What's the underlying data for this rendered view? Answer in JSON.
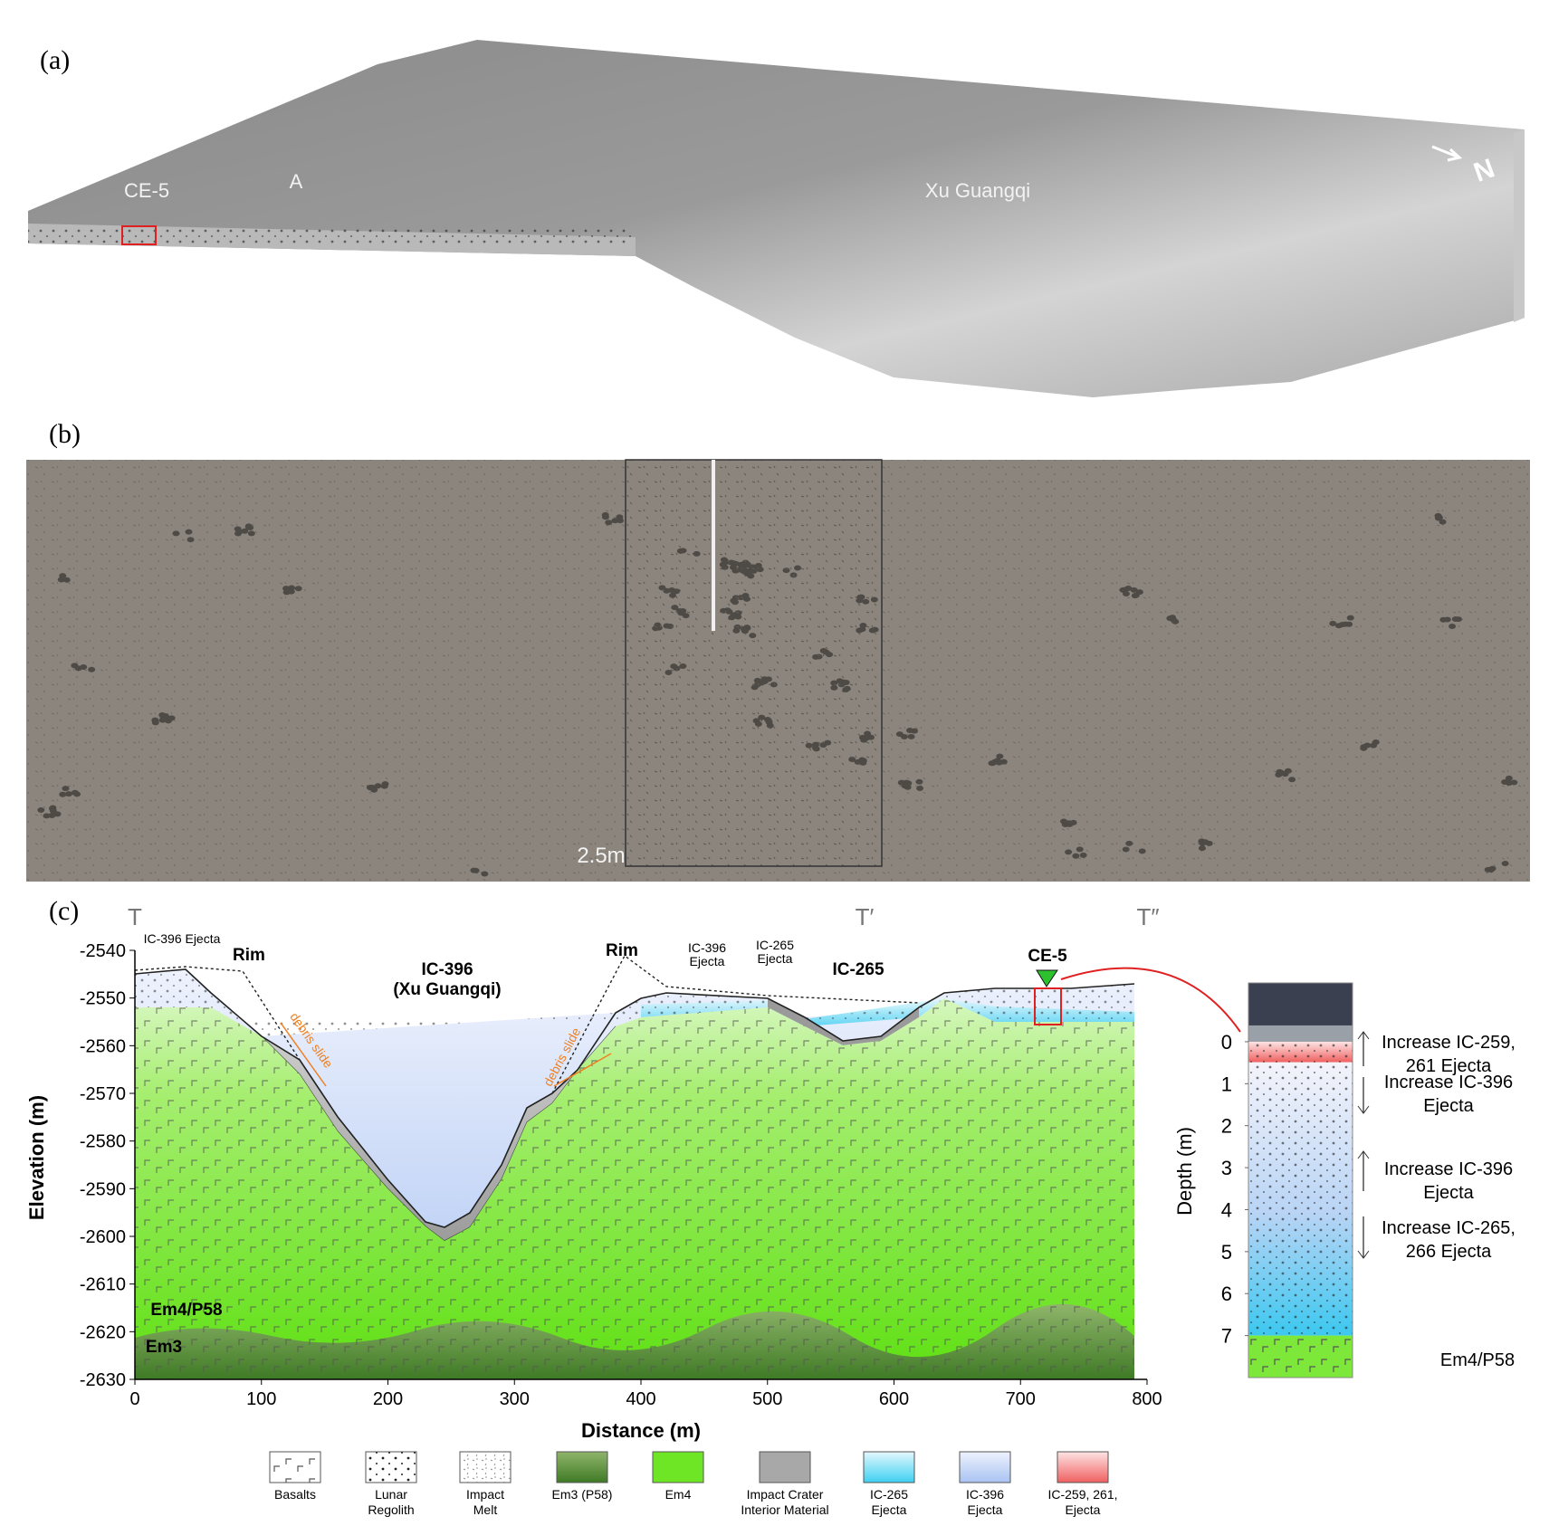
{
  "panels": {
    "a": {
      "label": "(a)",
      "annotations": [
        "CE-5",
        "A",
        "Xu Guangqi"
      ],
      "north": "N"
    },
    "b": {
      "label": "(b)",
      "scale_label": "2.5m"
    },
    "c": {
      "label": "(c)",
      "profile_markers": [
        "T",
        "T′",
        "T″"
      ],
      "x_label": "Distance (m)",
      "y_label": "Elevation (m)",
      "xlim": [
        0,
        800
      ],
      "ylim": [
        -2630,
        -2540
      ],
      "xticks": [
        0,
        100,
        200,
        300,
        400,
        500,
        600,
        700,
        800
      ],
      "yticks": [
        -2540,
        -2550,
        -2560,
        -2570,
        -2580,
        -2590,
        -2600,
        -2610,
        -2620,
        -2630
      ],
      "annotations": {
        "ejecta_left": "IC-396 Ejecta",
        "rim_left": "Rim",
        "crater": [
          "IC-396",
          "(Xu Guangqi)"
        ],
        "debris_left": "debris slide",
        "rim_right": "Rim",
        "debris_right": "debris slide",
        "ejecta_396": [
          "IC-396",
          "Ejecta"
        ],
        "ejecta_265": [
          "IC-265",
          "Ejecta"
        ],
        "crater_265": "IC-265",
        "site": "CE-5",
        "unit_em4": "Em4/P58",
        "unit_em3": "Em3"
      },
      "column": {
        "y_label": "Depth (m)",
        "ylim": [
          -1.4,
          8
        ],
        "yticks": [
          0,
          1,
          2,
          3,
          4,
          5,
          6,
          7
        ],
        "notes": [
          [
            "Increase IC-259,",
            "261 Ejecta"
          ],
          [
            "Increase IC-396",
            "Ejecta"
          ],
          [
            "Increase IC-396",
            "Ejecta"
          ],
          [
            "Increase IC-265,",
            "266 Ejecta"
          ]
        ],
        "base_unit": "Em4/P58"
      },
      "legend": [
        [
          "Basalts"
        ],
        [
          "Lunar",
          "Regolith"
        ],
        [
          "Impact",
          "Melt"
        ],
        [
          "Em3 (P58)"
        ],
        [
          "Em4"
        ],
        [
          "Impact Crater",
          "Interior Material"
        ],
        [
          "IC-265",
          "Ejecta"
        ],
        [
          "IC-396",
          "Ejecta"
        ],
        [
          "IC-259, 261,",
          "Ejecta"
        ]
      ]
    }
  }
}
